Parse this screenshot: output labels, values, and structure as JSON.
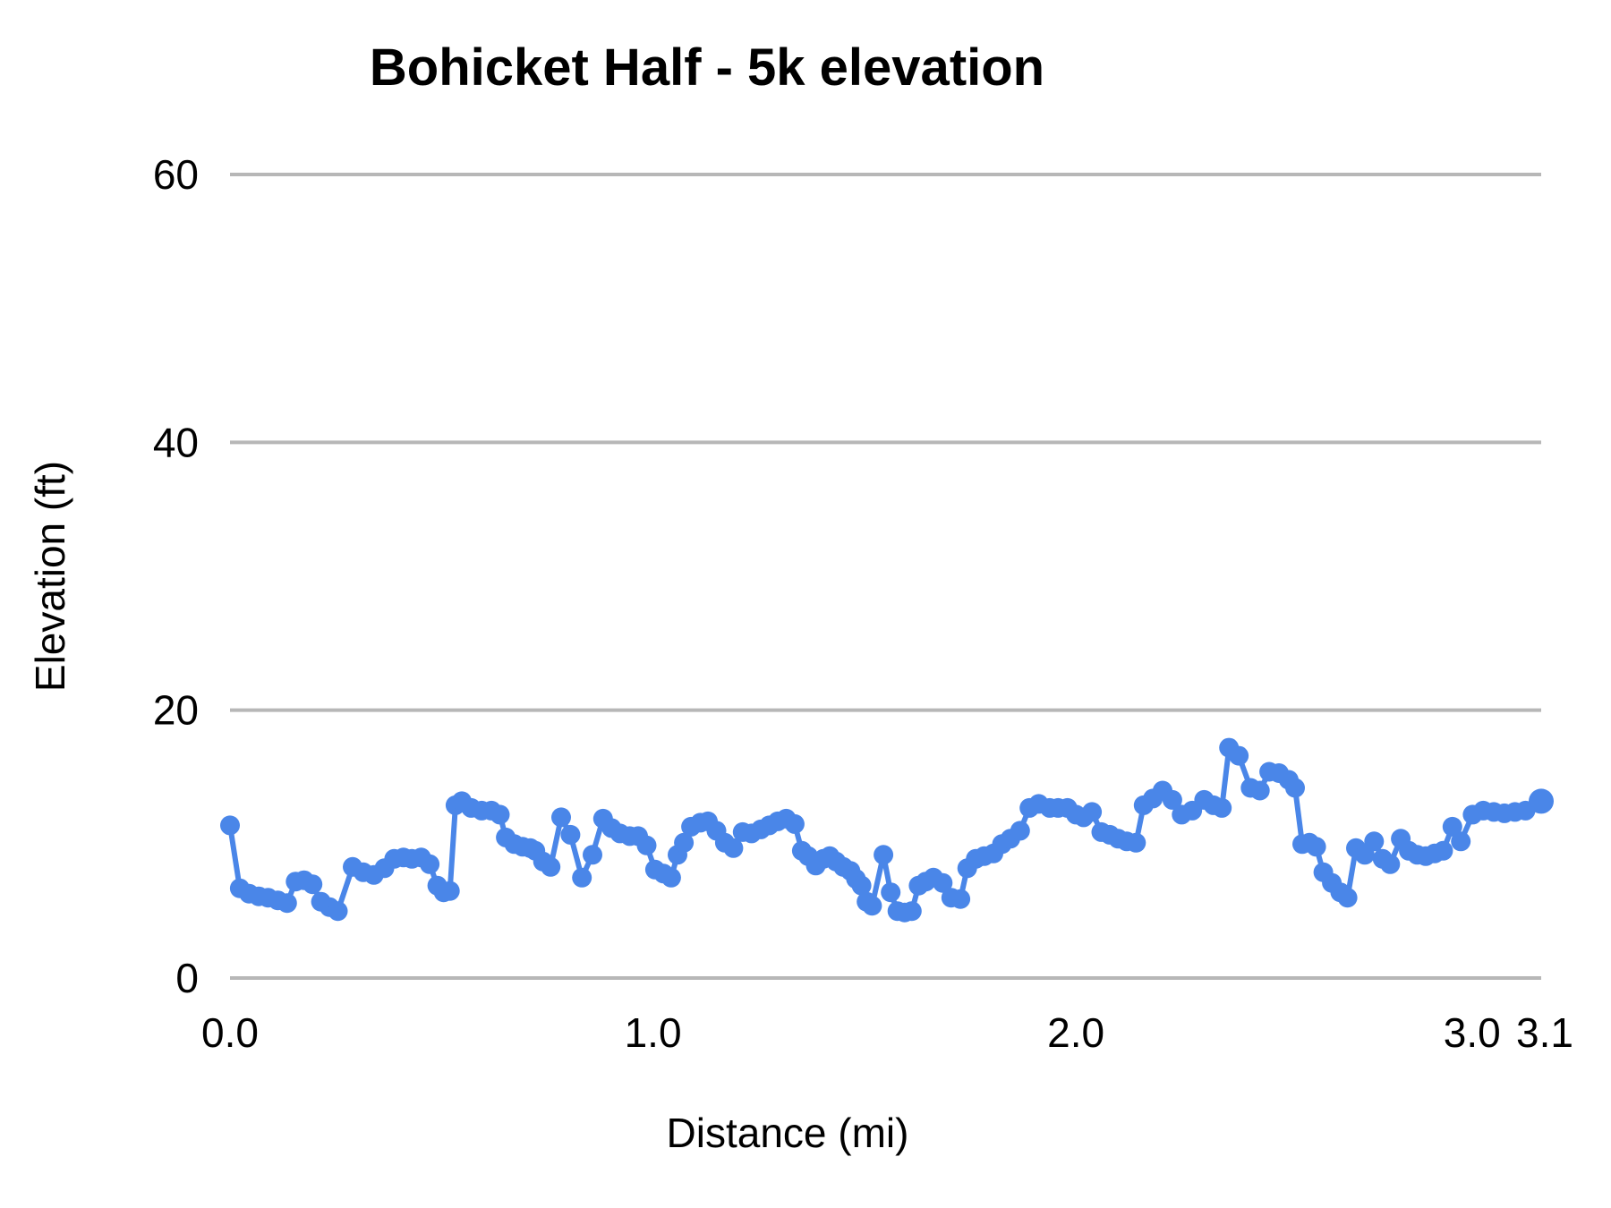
{
  "chart_data": {
    "type": "line",
    "title": "Bohicket Half - 5k elevation",
    "xlabel": "Distance (mi)",
    "ylabel": "Elevation (ft)",
    "xlim": [
      0,
      3.1
    ],
    "ylim": [
      0,
      60
    ],
    "grid": "horizontal-only",
    "legend": "none",
    "line_color": "#4a86e8",
    "marker_color": "#4a86e8",
    "grid_color": "#b7b7b7",
    "text_color": "#000000",
    "background_color": "#ffffff",
    "xticks": [
      {
        "v": 0.0,
        "label": "0.0",
        "dx": 0
      },
      {
        "v": 1.0,
        "label": "1.0",
        "dx": 0
      },
      {
        "v": 2.0,
        "label": "2.0",
        "dx": 0
      },
      {
        "v": 3.0,
        "label": "3.0",
        "dx": -30
      },
      {
        "v": 3.1,
        "label": "3.1",
        "dx": 4
      }
    ],
    "yticks": [
      {
        "v": 0,
        "label": "0"
      },
      {
        "v": 20,
        "label": "20"
      },
      {
        "v": 40,
        "label": "40"
      },
      {
        "v": 60,
        "label": "60"
      }
    ],
    "end_marker_radius": 14,
    "marker_radius": 11,
    "points": [
      [
        0.0,
        11.4
      ],
      [
        0.023,
        6.7
      ],
      [
        0.045,
        6.3
      ],
      [
        0.068,
        6.1
      ],
      [
        0.09,
        6.0
      ],
      [
        0.113,
        5.8
      ],
      [
        0.135,
        5.6
      ],
      [
        0.155,
        7.2
      ],
      [
        0.175,
        7.3
      ],
      [
        0.195,
        7.0
      ],
      [
        0.215,
        5.7
      ],
      [
        0.235,
        5.3
      ],
      [
        0.255,
        5.0
      ],
      [
        0.29,
        8.3
      ],
      [
        0.315,
        7.9
      ],
      [
        0.34,
        7.7
      ],
      [
        0.365,
        8.2
      ],
      [
        0.388,
        8.9
      ],
      [
        0.41,
        9.0
      ],
      [
        0.43,
        8.9
      ],
      [
        0.452,
        9.0
      ],
      [
        0.472,
        8.5
      ],
      [
        0.49,
        6.9
      ],
      [
        0.505,
        6.4
      ],
      [
        0.52,
        6.5
      ],
      [
        0.533,
        12.9
      ],
      [
        0.548,
        13.2
      ],
      [
        0.57,
        12.7
      ],
      [
        0.595,
        12.5
      ],
      [
        0.618,
        12.5
      ],
      [
        0.638,
        12.2
      ],
      [
        0.652,
        10.5
      ],
      [
        0.672,
        10.0
      ],
      [
        0.692,
        9.8
      ],
      [
        0.71,
        9.7
      ],
      [
        0.722,
        9.5
      ],
      [
        0.74,
        8.7
      ],
      [
        0.758,
        8.3
      ],
      [
        0.783,
        12.0
      ],
      [
        0.805,
        10.7
      ],
      [
        0.832,
        7.5
      ],
      [
        0.857,
        9.2
      ],
      [
        0.882,
        11.9
      ],
      [
        0.902,
        11.2
      ],
      [
        0.922,
        10.8
      ],
      [
        0.945,
        10.6
      ],
      [
        0.965,
        10.6
      ],
      [
        0.985,
        9.9
      ],
      [
        1.005,
        8.1
      ],
      [
        1.025,
        7.8
      ],
      [
        1.043,
        7.5
      ],
      [
        1.058,
        9.2
      ],
      [
        1.073,
        10.1
      ],
      [
        1.09,
        11.3
      ],
      [
        1.112,
        11.6
      ],
      [
        1.13,
        11.7
      ],
      [
        1.15,
        11.0
      ],
      [
        1.17,
        10.1
      ],
      [
        1.19,
        9.7
      ],
      [
        1.212,
        10.9
      ],
      [
        1.233,
        10.8
      ],
      [
        1.255,
        11.1
      ],
      [
        1.275,
        11.4
      ],
      [
        1.295,
        11.7
      ],
      [
        1.315,
        11.9
      ],
      [
        1.335,
        11.5
      ],
      [
        1.352,
        9.5
      ],
      [
        1.367,
        9.1
      ],
      [
        1.385,
        8.4
      ],
      [
        1.403,
        8.9
      ],
      [
        1.418,
        9.1
      ],
      [
        1.433,
        8.7
      ],
      [
        1.45,
        8.3
      ],
      [
        1.467,
        8.0
      ],
      [
        1.48,
        7.4
      ],
      [
        1.493,
        6.9
      ],
      [
        1.505,
        5.7
      ],
      [
        1.518,
        5.4
      ],
      [
        1.545,
        9.2
      ],
      [
        1.562,
        6.4
      ],
      [
        1.578,
        5.0
      ],
      [
        1.595,
        4.9
      ],
      [
        1.612,
        5.0
      ],
      [
        1.628,
        6.9
      ],
      [
        1.645,
        7.2
      ],
      [
        1.663,
        7.5
      ],
      [
        1.685,
        7.1
      ],
      [
        1.705,
        6.0
      ],
      [
        1.727,
        5.9
      ],
      [
        1.743,
        8.2
      ],
      [
        1.763,
        8.9
      ],
      [
        1.783,
        9.1
      ],
      [
        1.805,
        9.3
      ],
      [
        1.825,
        10.0
      ],
      [
        1.845,
        10.4
      ],
      [
        1.868,
        11.0
      ],
      [
        1.89,
        12.7
      ],
      [
        1.912,
        13.0
      ],
      [
        1.938,
        12.7
      ],
      [
        1.958,
        12.7
      ],
      [
        1.98,
        12.7
      ],
      [
        2.0,
        12.2
      ],
      [
        2.018,
        12.0
      ],
      [
        2.038,
        12.4
      ],
      [
        2.06,
        10.9
      ],
      [
        2.08,
        10.7
      ],
      [
        2.1,
        10.4
      ],
      [
        2.12,
        10.2
      ],
      [
        2.142,
        10.1
      ],
      [
        2.16,
        12.9
      ],
      [
        2.182,
        13.4
      ],
      [
        2.205,
        14.0
      ],
      [
        2.228,
        13.3
      ],
      [
        2.25,
        12.2
      ],
      [
        2.275,
        12.5
      ],
      [
        2.303,
        13.3
      ],
      [
        2.325,
        12.9
      ],
      [
        2.345,
        12.7
      ],
      [
        2.362,
        17.2
      ],
      [
        2.385,
        16.6
      ],
      [
        2.413,
        14.2
      ],
      [
        2.435,
        14.0
      ],
      [
        2.457,
        15.4
      ],
      [
        2.48,
        15.3
      ],
      [
        2.503,
        14.8
      ],
      [
        2.518,
        14.2
      ],
      [
        2.535,
        10.0
      ],
      [
        2.552,
        10.1
      ],
      [
        2.568,
        9.8
      ],
      [
        2.585,
        7.9
      ],
      [
        2.605,
        7.1
      ],
      [
        2.625,
        6.4
      ],
      [
        2.642,
        6.0
      ],
      [
        2.662,
        9.7
      ],
      [
        2.683,
        9.2
      ],
      [
        2.705,
        10.2
      ],
      [
        2.725,
        8.9
      ],
      [
        2.743,
        8.5
      ],
      [
        2.768,
        10.4
      ],
      [
        2.787,
        9.5
      ],
      [
        2.807,
        9.2
      ],
      [
        2.827,
        9.1
      ],
      [
        2.848,
        9.3
      ],
      [
        2.868,
        9.5
      ],
      [
        2.89,
        11.3
      ],
      [
        2.91,
        10.2
      ],
      [
        2.938,
        12.2
      ],
      [
        2.963,
        12.5
      ],
      [
        2.988,
        12.4
      ],
      [
        3.013,
        12.3
      ],
      [
        3.038,
        12.4
      ],
      [
        3.063,
        12.5
      ],
      [
        3.1,
        13.2
      ]
    ]
  }
}
